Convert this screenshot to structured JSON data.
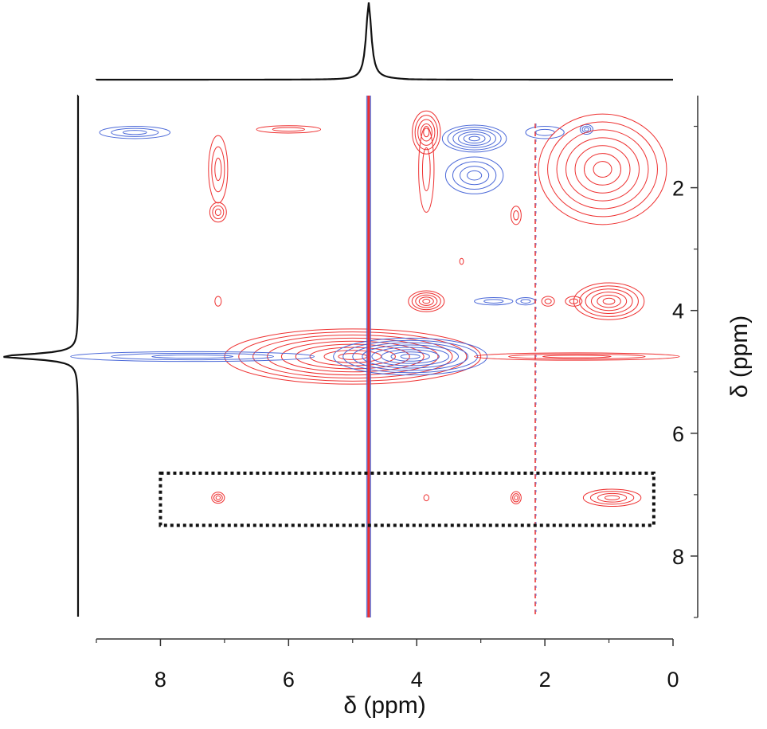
{
  "chart_data": {
    "type": "2D NMR contour plot",
    "xlabel": "δ (ppm)",
    "ylabel": "δ (ppm)",
    "x_axis": {
      "min": 0,
      "max": 9,
      "reversed": true,
      "ticks": [
        "8",
        "6",
        "4",
        "2",
        "0"
      ],
      "tick_values": [
        8,
        6,
        4,
        2,
        0
      ]
    },
    "y_axis": {
      "min": 0.5,
      "max": 9,
      "reversed": true,
      "position": "right",
      "ticks": [
        "2",
        "4",
        "6",
        "8"
      ],
      "tick_values": [
        2,
        4,
        6,
        8
      ]
    },
    "colors": {
      "positive": "#ee3030",
      "negative": "#4a68d8",
      "projection": "#111111",
      "box": "#111111"
    },
    "projection": {
      "residual_peak_ppm": 4.75
    },
    "residual_line_ppm": 4.75,
    "reference_line_ppm": 2.15,
    "highlight_box": {
      "x_range": [
        0.3,
        8.0
      ],
      "y_range": [
        6.65,
        7.5
      ]
    },
    "peaks": [
      {
        "x": 8.4,
        "y": 1.1,
        "rx": 0.55,
        "ry": 0.1,
        "levels": 3,
        "sign": "neg"
      },
      {
        "x": 7.1,
        "y": 1.7,
        "rx": 0.15,
        "ry": 0.55,
        "levels": 3,
        "sign": "pos"
      },
      {
        "x": 7.1,
        "y": 2.4,
        "rx": 0.13,
        "ry": 0.16,
        "levels": 3,
        "sign": "pos"
      },
      {
        "x": 7.1,
        "y": 3.85,
        "rx": 0.05,
        "ry": 0.08,
        "levels": 1,
        "sign": "pos"
      },
      {
        "x": 7.1,
        "y": 7.05,
        "rx": 0.1,
        "ry": 0.09,
        "levels": 3,
        "sign": "pos"
      },
      {
        "x": 6.0,
        "y": 1.05,
        "rx": 0.5,
        "ry": 0.06,
        "levels": 2,
        "sign": "pos"
      },
      {
        "x": 3.85,
        "y": 1.1,
        "rx": 0.22,
        "ry": 0.35,
        "levels": 5,
        "sign": "pos"
      },
      {
        "x": 3.85,
        "y": 1.7,
        "rx": 0.12,
        "ry": 0.7,
        "levels": 2,
        "sign": "pos"
      },
      {
        "x": 3.1,
        "y": 1.2,
        "rx": 0.5,
        "ry": 0.22,
        "levels": 6,
        "sign": "neg"
      },
      {
        "x": 3.1,
        "y": 1.8,
        "rx": 0.45,
        "ry": 0.3,
        "levels": 4,
        "sign": "neg"
      },
      {
        "x": 2.0,
        "y": 1.1,
        "rx": 0.3,
        "ry": 0.1,
        "levels": 2,
        "sign": "neg"
      },
      {
        "x": 1.35,
        "y": 1.05,
        "rx": 0.1,
        "ry": 0.08,
        "levels": 3,
        "sign": "neg"
      },
      {
        "x": 1.1,
        "y": 1.7,
        "rx": 1.0,
        "ry": 0.9,
        "levels": 7,
        "sign": "pos"
      },
      {
        "x": 2.45,
        "y": 2.45,
        "rx": 0.08,
        "ry": 0.15,
        "levels": 2,
        "sign": "pos"
      },
      {
        "x": 3.85,
        "y": 3.85,
        "rx": 0.28,
        "ry": 0.17,
        "levels": 5,
        "sign": "pos"
      },
      {
        "x": 3.3,
        "y": 3.2,
        "rx": 0.03,
        "ry": 0.05,
        "levels": 1,
        "sign": "pos"
      },
      {
        "x": 2.8,
        "y": 3.85,
        "rx": 0.3,
        "ry": 0.06,
        "levels": 2,
        "sign": "neg"
      },
      {
        "x": 2.3,
        "y": 3.85,
        "rx": 0.15,
        "ry": 0.06,
        "levels": 2,
        "sign": "neg"
      },
      {
        "x": 1.95,
        "y": 3.85,
        "rx": 0.1,
        "ry": 0.08,
        "levels": 2,
        "sign": "pos"
      },
      {
        "x": 1.55,
        "y": 3.85,
        "rx": 0.13,
        "ry": 0.08,
        "levels": 2,
        "sign": "pos"
      },
      {
        "x": 1.0,
        "y": 3.85,
        "rx": 0.55,
        "ry": 0.3,
        "levels": 6,
        "sign": "pos"
      },
      {
        "x": 5.0,
        "y": 4.75,
        "rx": 2.0,
        "ry": 0.45,
        "levels": 9,
        "sign": "pos"
      },
      {
        "x": 4.1,
        "y": 4.75,
        "rx": 1.2,
        "ry": 0.3,
        "levels": 8,
        "sign": "neg"
      },
      {
        "x": 7.5,
        "y": 4.75,
        "rx": 1.9,
        "ry": 0.08,
        "levels": 3,
        "sign": "neg"
      },
      {
        "x": 1.5,
        "y": 4.75,
        "rx": 1.6,
        "ry": 0.06,
        "levels": 3,
        "sign": "pos"
      },
      {
        "x": 3.85,
        "y": 7.05,
        "rx": 0.04,
        "ry": 0.05,
        "levels": 1,
        "sign": "pos"
      },
      {
        "x": 2.45,
        "y": 7.05,
        "rx": 0.08,
        "ry": 0.1,
        "levels": 3,
        "sign": "pos"
      },
      {
        "x": 0.95,
        "y": 7.05,
        "rx": 0.45,
        "ry": 0.14,
        "levels": 4,
        "sign": "pos"
      }
    ]
  }
}
